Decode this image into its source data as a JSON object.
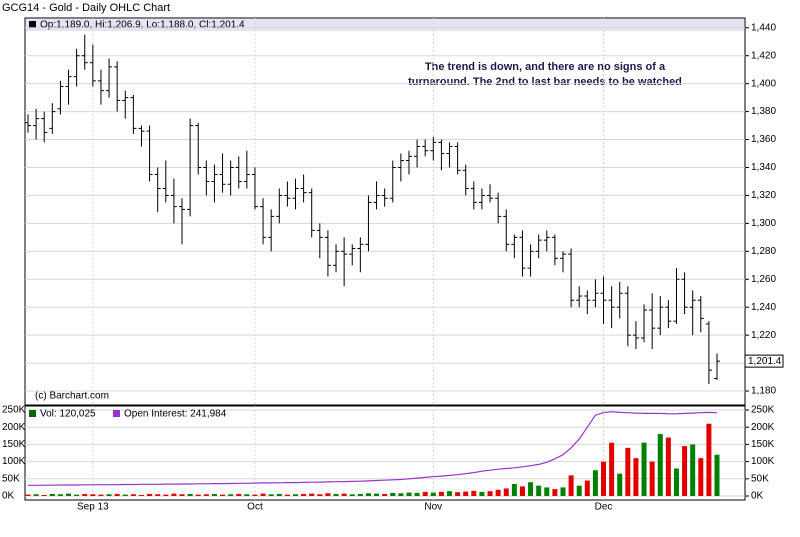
{
  "chart_data": [
    {
      "type": "ohlc",
      "title": "GCG14 - Gold - Daily OHLC Chart",
      "legend": "Op:1,189.0, Hi:1,206.9, Lo:1,188.0, Cl:1,201.4",
      "annotation": [
        "The trend is down, and there are no signs of a",
        "turnaround.  The 2nd to last bar needs to be watched"
      ],
      "credit": "(c) Barchart.com",
      "categories": [
        null,
        null,
        null,
        null,
        null,
        null,
        null,
        null,
        "Sep 13",
        null,
        null,
        null,
        null,
        null,
        null,
        null,
        null,
        null,
        null,
        null,
        null,
        null,
        null,
        null,
        null,
        null,
        null,
        null,
        "Oct",
        null,
        null,
        null,
        null,
        null,
        null,
        null,
        null,
        null,
        null,
        null,
        null,
        null,
        null,
        null,
        null,
        null,
        null,
        null,
        null,
        null,
        "Nov",
        null,
        null,
        null,
        null,
        null,
        null,
        null,
        null,
        null,
        null,
        null,
        null,
        null,
        null,
        null,
        null,
        null,
        null,
        null,
        null,
        "Dec",
        null,
        null,
        null,
        null,
        null,
        null,
        null,
        null,
        null,
        null,
        null,
        null,
        null,
        null
      ],
      "open": [
        1372,
        1370,
        1375,
        1368,
        1382,
        1398,
        1405,
        1420,
        1415,
        1402,
        1395,
        1412,
        1388,
        1390,
        1368,
        1366,
        1335,
        1325,
        1320,
        1312,
        1310,
        1370,
        1340,
        1330,
        1335,
        1328,
        1340,
        1330,
        1335,
        1312,
        1290,
        1305,
        1320,
        1318,
        1325,
        1322,
        1295,
        1290,
        1270,
        1280,
        1278,
        1282,
        1285,
        1315,
        1320,
        1318,
        1340,
        1345,
        1348,
        1355,
        1352,
        1358,
        1350,
        1355,
        1338,
        1325,
        1315,
        1320,
        1318,
        1305,
        1285,
        1290,
        1268,
        1280,
        1288,
        1290,
        1275,
        1278,
        1245,
        1248,
        1245,
        1250,
        1245,
        1240,
        1250,
        1220,
        1218,
        1238,
        1225,
        1240,
        1230,
        1260,
        1240,
        1245,
        1228,
        1189.0
      ],
      "high": [
        1378,
        1382,
        1380,
        1386,
        1402,
        1410,
        1425,
        1435,
        1428,
        1410,
        1418,
        1416,
        1395,
        1392,
        1370,
        1370,
        1340,
        1345,
        1332,
        1318,
        1375,
        1372,
        1345,
        1342,
        1350,
        1345,
        1348,
        1352,
        1340,
        1318,
        1310,
        1325,
        1330,
        1332,
        1335,
        1325,
        1300,
        1295,
        1285,
        1290,
        1285,
        1290,
        1320,
        1330,
        1325,
        1345,
        1350,
        1352,
        1360,
        1360,
        1362,
        1360,
        1358,
        1358,
        1342,
        1330,
        1325,
        1328,
        1322,
        1310,
        1292,
        1295,
        1285,
        1292,
        1295,
        1292,
        1280,
        1282,
        1255,
        1252,
        1260,
        1262,
        1255,
        1258,
        1255,
        1230,
        1242,
        1250,
        1248,
        1245,
        1268,
        1265,
        1252,
        1248,
        1230,
        1206.9
      ],
      "low": [
        1365,
        1360,
        1358,
        1364,
        1378,
        1385,
        1398,
        1410,
        1398,
        1385,
        1390,
        1380,
        1375,
        1364,
        1355,
        1330,
        1308,
        1315,
        1300,
        1285,
        1305,
        1335,
        1320,
        1315,
        1322,
        1320,
        1325,
        1325,
        1310,
        1285,
        1280,
        1300,
        1312,
        1310,
        1315,
        1290,
        1275,
        1262,
        1265,
        1255,
        1270,
        1265,
        1280,
        1310,
        1312,
        1315,
        1330,
        1335,
        1340,
        1348,
        1345,
        1338,
        1340,
        1335,
        1320,
        1310,
        1310,
        1315,
        1300,
        1280,
        1275,
        1262,
        1262,
        1275,
        1280,
        1270,
        1265,
        1240,
        1240,
        1235,
        1240,
        1228,
        1225,
        1232,
        1212,
        1210,
        1215,
        1210,
        1220,
        1225,
        1228,
        1235,
        1220,
        1222,
        1185,
        1188.0
      ],
      "close": [
        1370,
        1375,
        1365,
        1380,
        1398,
        1405,
        1420,
        1415,
        1402,
        1395,
        1412,
        1388,
        1390,
        1368,
        1366,
        1335,
        1325,
        1320,
        1312,
        1310,
        1370,
        1340,
        1330,
        1335,
        1328,
        1340,
        1330,
        1335,
        1312,
        1290,
        1305,
        1320,
        1318,
        1325,
        1322,
        1295,
        1290,
        1270,
        1280,
        1278,
        1282,
        1285,
        1315,
        1320,
        1318,
        1340,
        1345,
        1348,
        1355,
        1352,
        1358,
        1350,
        1355,
        1338,
        1325,
        1315,
        1320,
        1318,
        1305,
        1285,
        1290,
        1268,
        1280,
        1288,
        1290,
        1275,
        1278,
        1245,
        1248,
        1245,
        1250,
        1245,
        1240,
        1250,
        1220,
        1218,
        1238,
        1225,
        1240,
        1230,
        1260,
        1240,
        1245,
        1232,
        1195,
        1201.4
      ],
      "last_label": "1,201.4",
      "color": "#000000",
      "ylim": [
        1170,
        1447
      ],
      "yticks": [
        {
          "value": 1180,
          "label": "1,180"
        },
        {
          "value": 1200,
          "label": "1,200"
        },
        {
          "value": 1220,
          "label": "1,220"
        },
        {
          "value": 1240,
          "label": "1,240"
        },
        {
          "value": 1260,
          "label": "1,260"
        },
        {
          "value": 1280,
          "label": "1,280"
        },
        {
          "value": 1300,
          "label": "1,300"
        },
        {
          "value": 1320,
          "label": "1,320"
        },
        {
          "value": 1340,
          "label": "1,340"
        },
        {
          "value": 1360,
          "label": "1,360"
        },
        {
          "value": 1380,
          "label": "1,380"
        },
        {
          "value": 1400,
          "label": "1,400"
        },
        {
          "value": 1420,
          "label": "1,420"
        },
        {
          "value": 1440,
          "label": "1,440"
        }
      ],
      "grid": true
    },
    {
      "type": "volume",
      "series": [
        {
          "name": "Vol: 120,025",
          "color": "#006600",
          "up_color": "#008000",
          "down_color": "#e00000",
          "values": [
            4000,
            5000,
            3000,
            6000,
            5000,
            7000,
            4000,
            6000,
            5000,
            4000,
            5000,
            6000,
            4000,
            5000,
            3000,
            6000,
            5000,
            4000,
            7000,
            5000,
            6000,
            4000,
            5000,
            6000,
            4000,
            5000,
            6000,
            5000,
            4000,
            7000,
            5000,
            6000,
            4000,
            5000,
            6000,
            7000,
            5000,
            8000,
            6000,
            7000,
            5000,
            6000,
            8000,
            7000,
            6000,
            9000,
            8000,
            10000,
            9000,
            12000,
            10000,
            12000,
            14000,
            11000,
            13000,
            15000,
            12000,
            14000,
            18000,
            22000,
            35000,
            28000,
            40000,
            30000,
            25000,
            20000,
            25000,
            60000,
            30000,
            45000,
            75000,
            100000,
            155000,
            65000,
            140000,
            110000,
            155000,
            100000,
            180000,
            170000,
            80000,
            145000,
            150000,
            110000,
            210000,
            120025
          ]
        },
        {
          "name": "Open Interest: 241,984",
          "color": "#9933cc",
          "values": [
            31000,
            31000,
            31500,
            31500,
            32000,
            32000,
            32000,
            32500,
            32500,
            33000,
            33000,
            33000,
            33500,
            33500,
            34000,
            34000,
            34000,
            34500,
            34500,
            35000,
            35000,
            35500,
            35500,
            36000,
            36000,
            36500,
            37000,
            37000,
            37500,
            38000,
            38000,
            38500,
            39000,
            39000,
            39500,
            40000,
            40500,
            41000,
            41500,
            42000,
            42500,
            43000,
            44000,
            45000,
            46000,
            47000,
            48000,
            50000,
            52000,
            54000,
            56000,
            58000,
            60000,
            62000,
            65000,
            68000,
            72000,
            75000,
            78000,
            80000,
            82000,
            85000,
            88000,
            92000,
            98000,
            108000,
            120000,
            140000,
            165000,
            200000,
            235000,
            242000,
            245000,
            243000,
            242000,
            241000,
            240000,
            240000,
            240000,
            239000,
            239000,
            240000,
            241000,
            242000,
            243000,
            241984
          ]
        }
      ],
      "ylim": [
        -11600,
        261600
      ],
      "yticks": [
        {
          "value": 0,
          "label": "0K"
        },
        {
          "value": 50000,
          "label": "50K"
        },
        {
          "value": 100000,
          "label": "100K"
        },
        {
          "value": 150000,
          "label": "150K"
        },
        {
          "value": 200000,
          "label": "200K"
        },
        {
          "value": 250000,
          "label": "250K"
        }
      ],
      "grid": true
    }
  ]
}
